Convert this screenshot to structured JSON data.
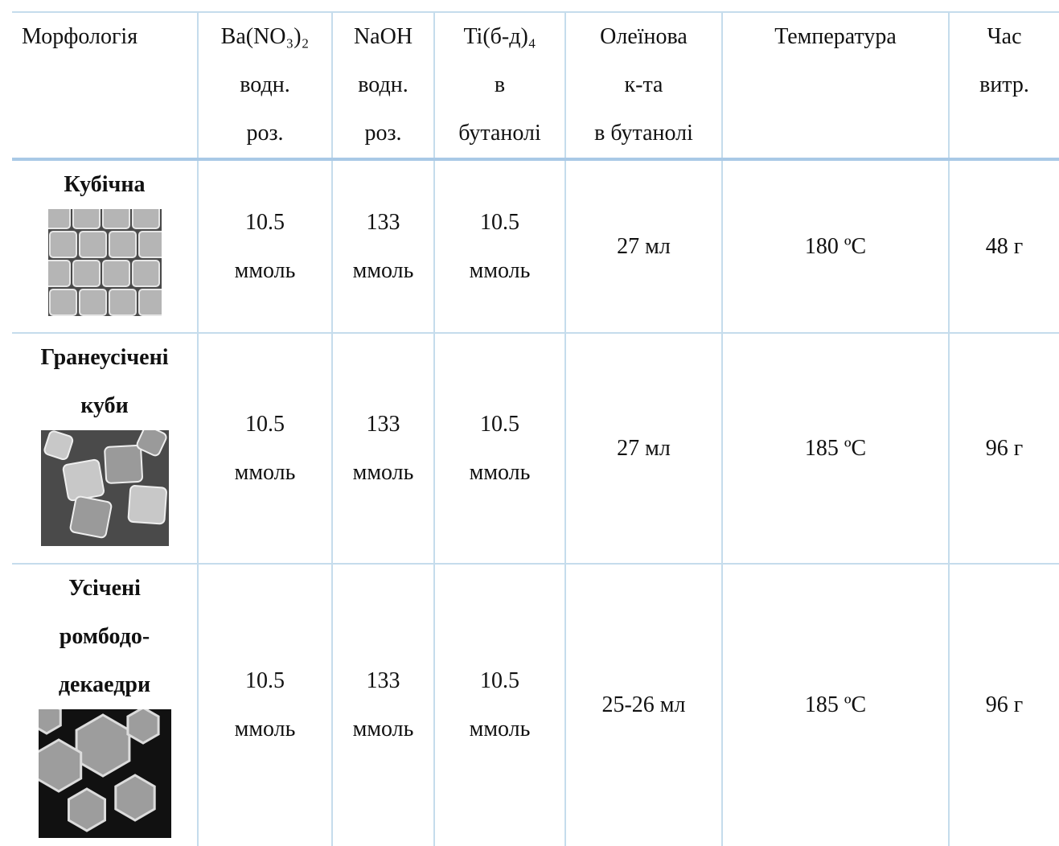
{
  "table": {
    "header": [
      [
        "Морфологія"
      ],
      [
        "Ba(NO₃)₂",
        "водн.",
        "роз."
      ],
      [
        "NaOH",
        "водн.",
        "роз."
      ],
      [
        "Ti(б-д)₄",
        "в",
        "бутанолі"
      ],
      [
        "Олеїнова",
        "к-та",
        "в бутанолі"
      ],
      [
        "Температура"
      ],
      [
        "Час",
        "витр."
      ]
    ],
    "rows": [
      {
        "morphology": [
          "Кубічна"
        ],
        "cells": [
          [
            "10.5",
            "ммоль"
          ],
          [
            "133",
            "ммоль"
          ],
          [
            "10.5",
            "ммоль"
          ],
          [
            "27 мл"
          ],
          [
            "180 ºC"
          ],
          [
            "48 г"
          ]
        ]
      },
      {
        "morphology": [
          "Гранеусічені",
          "куби"
        ],
        "cells": [
          [
            "10.5",
            "ммоль"
          ],
          [
            "133",
            "ммоль"
          ],
          [
            "10.5",
            "ммоль"
          ],
          [
            "27 мл"
          ],
          [
            "185 ºC"
          ],
          [
            "96 г"
          ]
        ]
      },
      {
        "morphology": [
          "Усічені",
          "ромбодо-",
          "декаедри"
        ],
        "cells": [
          [
            "10.5",
            "ммоль"
          ],
          [
            "133",
            "ммоль"
          ],
          [
            "10.5",
            "ммоль"
          ],
          [
            "25-26 мл"
          ],
          [
            "185 ºC"
          ],
          [
            "96 г"
          ]
        ]
      }
    ]
  }
}
